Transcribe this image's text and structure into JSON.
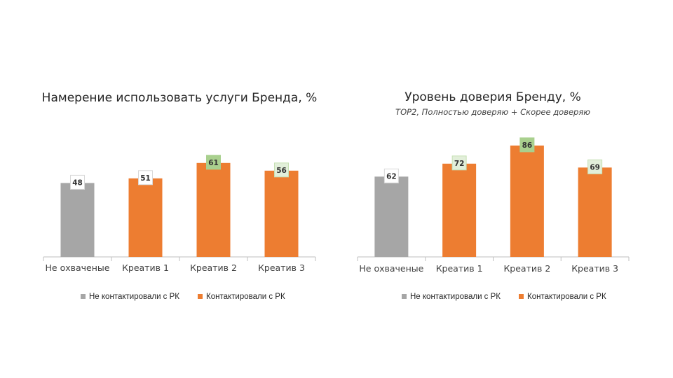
{
  "colors": {
    "not_contacted": "#a6a6a6",
    "contacted": "#ed7d31",
    "highlight_green": "#a9d08e",
    "highlight_light": "#e2efda",
    "axis": "#bfbfbf"
  },
  "chart_data": [
    {
      "type": "bar",
      "title": "Намерение использовать услуги Бренда, %",
      "subtitle": "",
      "categories": [
        "Не охваченые",
        "Креатив 1",
        "Креатив 2",
        "Креатив 3"
      ],
      "values": [
        48,
        51,
        61,
        56
      ],
      "bar_groups": [
        "not_contacted",
        "contacted",
        "contacted",
        "contacted"
      ],
      "label_highlight": [
        "none",
        "none",
        "green",
        "light"
      ],
      "ylim": [
        0,
        100
      ],
      "grid": false,
      "legend_position": "bottom",
      "legend": [
        {
          "key": "not_contacted",
          "label": "Не контактировали с РК"
        },
        {
          "key": "contacted",
          "label": "Контактировали с РК"
        }
      ]
    },
    {
      "type": "bar",
      "title": "Уровень доверия Бренду, %",
      "subtitle": "TOP2, Полностью доверяю + Скорее доверяю",
      "categories": [
        "Не охваченые",
        "Креатив 1",
        "Креатив 2",
        "Креатив 3"
      ],
      "values": [
        62,
        72,
        86,
        69
      ],
      "bar_groups": [
        "not_contacted",
        "contacted",
        "contacted",
        "contacted"
      ],
      "label_highlight": [
        "none",
        "light",
        "green",
        "light"
      ],
      "ylim": [
        0,
        100
      ],
      "grid": false,
      "legend_position": "bottom",
      "legend": [
        {
          "key": "not_contacted",
          "label": "Не контактировали с РК"
        },
        {
          "key": "contacted",
          "label": "Контактировали с РК"
        }
      ]
    }
  ]
}
